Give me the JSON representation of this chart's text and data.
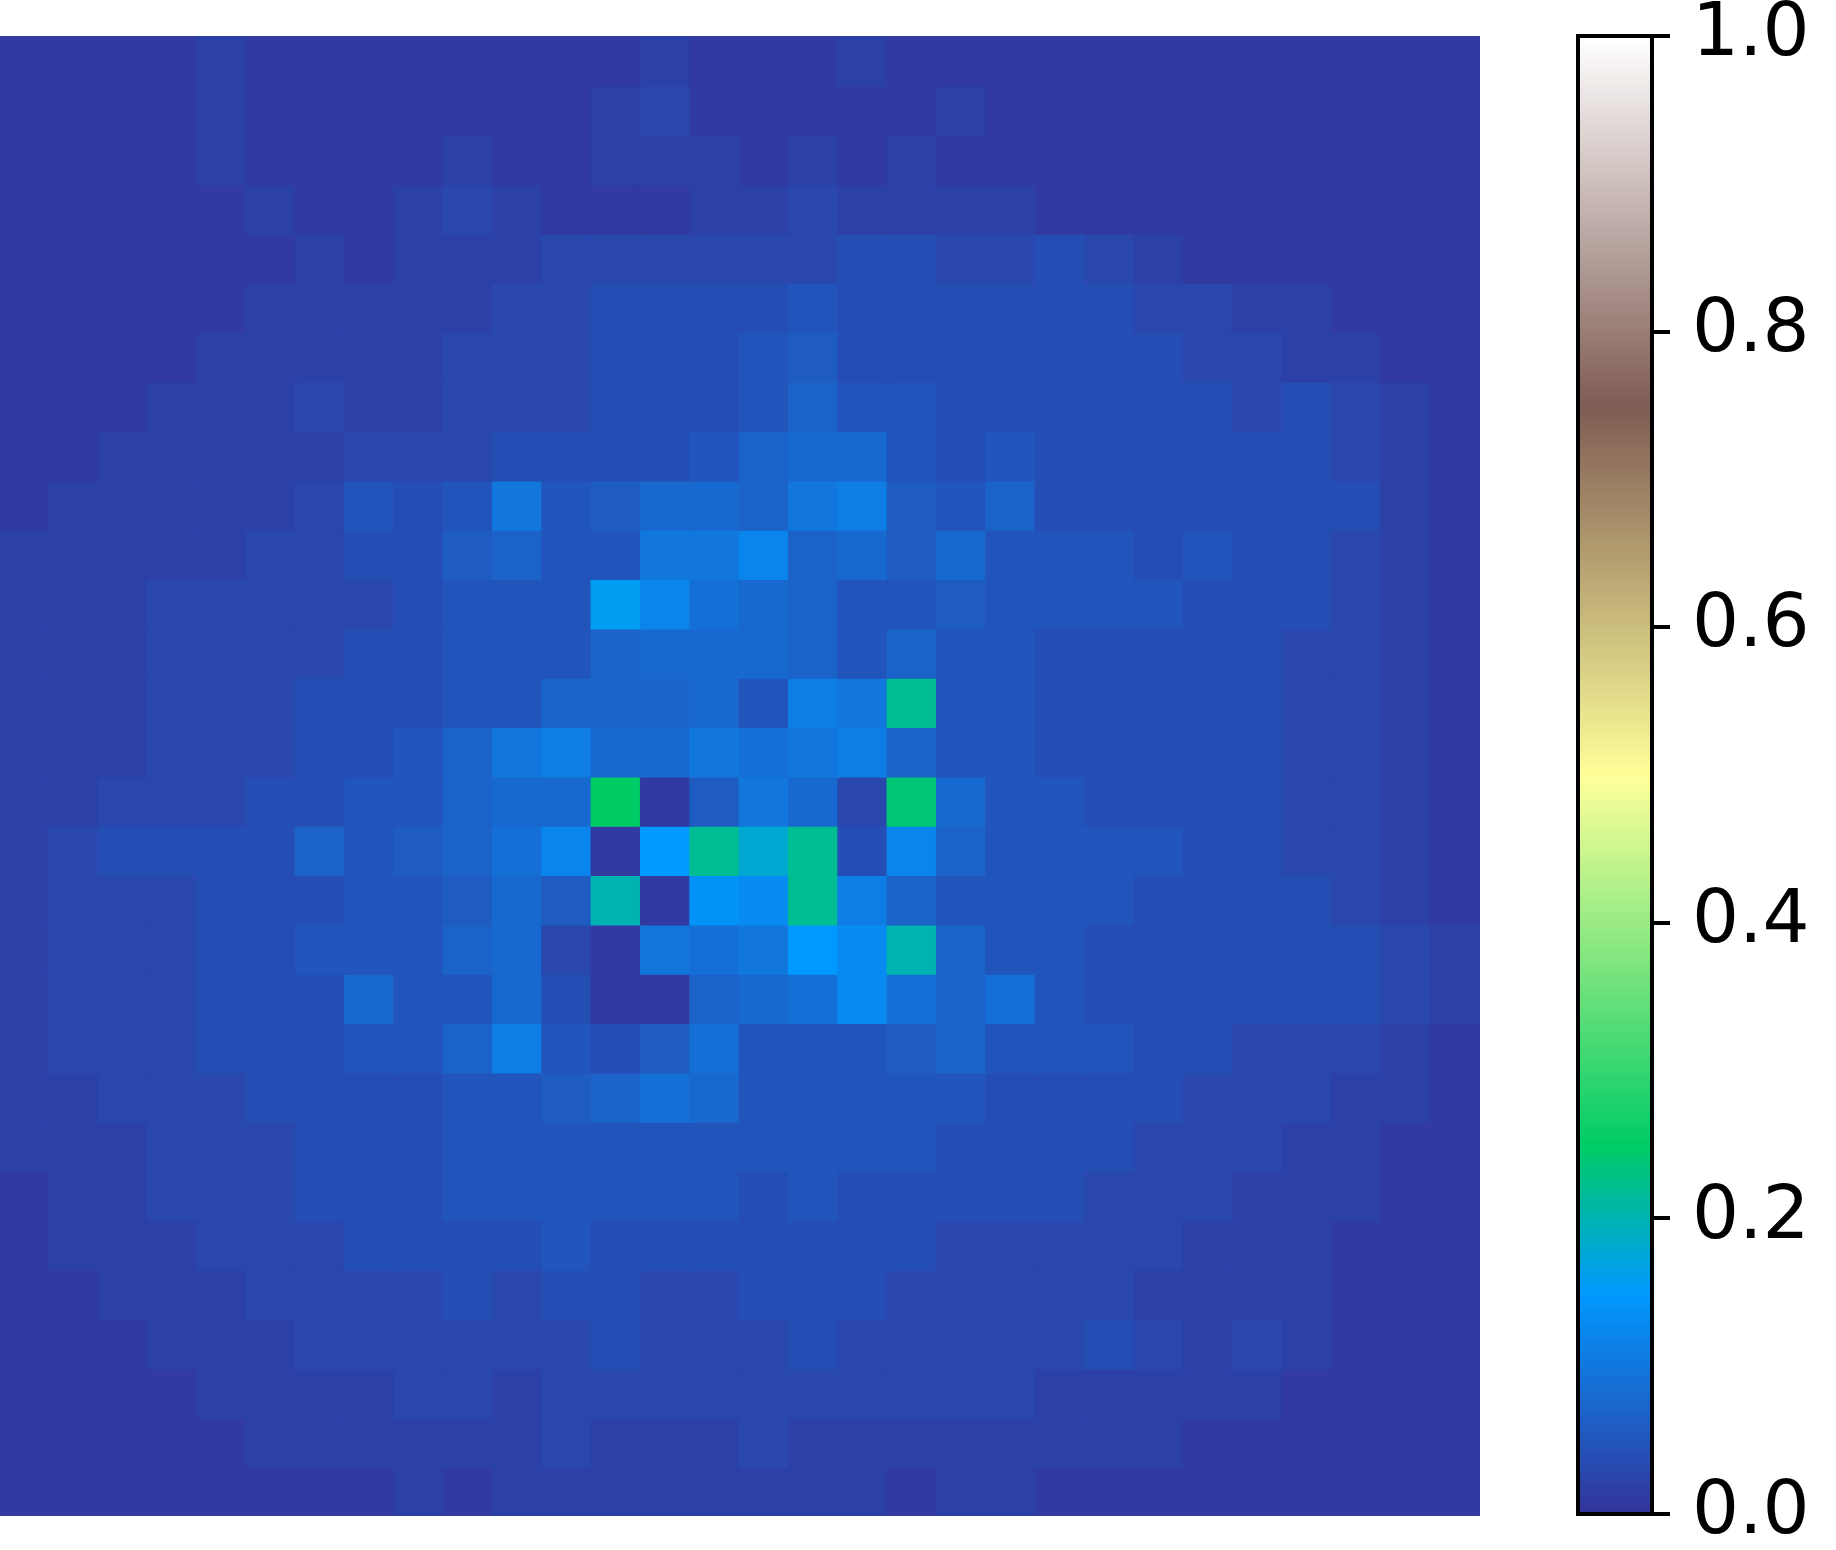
{
  "chart_data": {
    "type": "heatmap",
    "categories": [
      null,
      null,
      null,
      null,
      null,
      null,
      null,
      null,
      null,
      null,
      null,
      null,
      null,
      null,
      null,
      null,
      null,
      null,
      null,
      null,
      null,
      null,
      null,
      null,
      null,
      null,
      null,
      null,
      null,
      null
    ],
    "y_categories": [
      null,
      null,
      null,
      null,
      null,
      null,
      null,
      null,
      null,
      null,
      null,
      null,
      null,
      null,
      null,
      null,
      null,
      null,
      null,
      null,
      null,
      null,
      null,
      null,
      null,
      null,
      null,
      null,
      null,
      null
    ],
    "cells": [
      [
        0.01,
        0.01,
        0.01,
        0.01,
        0.02,
        0.01,
        0.01,
        0.01,
        0.01,
        0.01,
        0.01,
        0.01,
        0.01,
        0.02,
        0.01,
        0.01,
        0.01,
        0.02,
        0.01,
        0.01,
        0.01,
        0.01,
        0.01,
        0.01,
        0.01,
        0.01,
        0.01,
        0.01,
        0.01,
        0.01
      ],
      [
        0.01,
        0.01,
        0.01,
        0.01,
        0.02,
        0.01,
        0.01,
        0.01,
        0.01,
        0.01,
        0.01,
        0.01,
        0.02,
        0.03,
        0.01,
        0.01,
        0.01,
        0.01,
        0.01,
        0.02,
        0.01,
        0.01,
        0.01,
        0.01,
        0.01,
        0.01,
        0.01,
        0.01,
        0.01,
        0.01
      ],
      [
        0.01,
        0.01,
        0.01,
        0.01,
        0.02,
        0.01,
        0.01,
        0.01,
        0.01,
        0.02,
        0.01,
        0.01,
        0.02,
        0.02,
        0.02,
        0.01,
        0.02,
        0.01,
        0.02,
        0.01,
        0.01,
        0.01,
        0.01,
        0.01,
        0.01,
        0.01,
        0.01,
        0.01,
        0.01,
        0.01
      ],
      [
        0.01,
        0.01,
        0.01,
        0.01,
        0.01,
        0.02,
        0.01,
        0.01,
        0.02,
        0.03,
        0.02,
        0.01,
        0.01,
        0.01,
        0.02,
        0.02,
        0.03,
        0.02,
        0.02,
        0.02,
        0.02,
        0.01,
        0.01,
        0.01,
        0.01,
        0.01,
        0.01,
        0.01,
        0.01,
        0.01
      ],
      [
        0.01,
        0.01,
        0.01,
        0.01,
        0.01,
        0.01,
        0.02,
        0.01,
        0.02,
        0.02,
        0.02,
        0.03,
        0.03,
        0.03,
        0.03,
        0.03,
        0.03,
        0.04,
        0.04,
        0.03,
        0.03,
        0.04,
        0.03,
        0.02,
        0.01,
        0.01,
        0.01,
        0.01,
        0.01,
        0.01
      ],
      [
        0.01,
        0.01,
        0.01,
        0.01,
        0.01,
        0.02,
        0.02,
        0.02,
        0.02,
        0.02,
        0.03,
        0.03,
        0.04,
        0.04,
        0.04,
        0.04,
        0.05,
        0.04,
        0.04,
        0.04,
        0.04,
        0.04,
        0.04,
        0.03,
        0.03,
        0.02,
        0.02,
        0.01,
        0.01,
        0.01
      ],
      [
        0.01,
        0.01,
        0.01,
        0.01,
        0.02,
        0.02,
        0.02,
        0.02,
        0.02,
        0.03,
        0.03,
        0.03,
        0.04,
        0.04,
        0.04,
        0.05,
        0.06,
        0.04,
        0.04,
        0.04,
        0.04,
        0.04,
        0.04,
        0.04,
        0.03,
        0.03,
        0.02,
        0.02,
        0.01,
        0.01
      ],
      [
        0.01,
        0.01,
        0.01,
        0.02,
        0.02,
        0.02,
        0.03,
        0.02,
        0.02,
        0.03,
        0.03,
        0.03,
        0.04,
        0.04,
        0.04,
        0.05,
        0.07,
        0.05,
        0.05,
        0.04,
        0.04,
        0.04,
        0.04,
        0.04,
        0.04,
        0.03,
        0.04,
        0.03,
        0.02,
        0.01
      ],
      [
        0.01,
        0.01,
        0.02,
        0.02,
        0.02,
        0.02,
        0.02,
        0.03,
        0.03,
        0.03,
        0.04,
        0.04,
        0.04,
        0.04,
        0.05,
        0.07,
        0.08,
        0.08,
        0.05,
        0.04,
        0.05,
        0.04,
        0.04,
        0.04,
        0.04,
        0.04,
        0.04,
        0.03,
        0.02,
        0.01
      ],
      [
        0.01,
        0.02,
        0.02,
        0.02,
        0.02,
        0.02,
        0.03,
        0.05,
        0.04,
        0.05,
        0.1,
        0.05,
        0.06,
        0.08,
        0.08,
        0.07,
        0.1,
        0.11,
        0.06,
        0.05,
        0.07,
        0.04,
        0.04,
        0.04,
        0.04,
        0.04,
        0.04,
        0.04,
        0.02,
        0.01
      ],
      [
        0.02,
        0.02,
        0.02,
        0.02,
        0.02,
        0.03,
        0.03,
        0.04,
        0.04,
        0.06,
        0.07,
        0.05,
        0.05,
        0.1,
        0.1,
        0.12,
        0.07,
        0.08,
        0.06,
        0.08,
        0.05,
        0.05,
        0.05,
        0.04,
        0.05,
        0.04,
        0.04,
        0.03,
        0.02,
        0.01
      ],
      [
        0.02,
        0.02,
        0.02,
        0.03,
        0.03,
        0.03,
        0.03,
        0.03,
        0.04,
        0.05,
        0.05,
        0.05,
        0.16,
        0.12,
        0.09,
        0.08,
        0.07,
        0.05,
        0.05,
        0.06,
        0.05,
        0.05,
        0.05,
        0.05,
        0.04,
        0.04,
        0.04,
        0.03,
        0.02,
        0.01
      ],
      [
        0.02,
        0.02,
        0.02,
        0.03,
        0.03,
        0.03,
        0.03,
        0.04,
        0.04,
        0.05,
        0.05,
        0.05,
        0.07,
        0.08,
        0.08,
        0.08,
        0.07,
        0.05,
        0.07,
        0.05,
        0.05,
        0.04,
        0.04,
        0.04,
        0.04,
        0.04,
        0.03,
        0.03,
        0.02,
        0.01
      ],
      [
        0.02,
        0.02,
        0.02,
        0.03,
        0.03,
        0.03,
        0.04,
        0.04,
        0.04,
        0.05,
        0.05,
        0.07,
        0.07,
        0.07,
        0.08,
        0.05,
        0.11,
        0.1,
        0.22,
        0.05,
        0.05,
        0.04,
        0.04,
        0.04,
        0.04,
        0.04,
        0.03,
        0.03,
        0.02,
        0.01
      ],
      [
        0.02,
        0.02,
        0.02,
        0.03,
        0.03,
        0.03,
        0.04,
        0.04,
        0.05,
        0.07,
        0.1,
        0.11,
        0.08,
        0.08,
        0.1,
        0.09,
        0.1,
        0.11,
        0.07,
        0.05,
        0.05,
        0.04,
        0.04,
        0.04,
        0.04,
        0.04,
        0.03,
        0.03,
        0.02,
        0.01
      ],
      [
        0.02,
        0.02,
        0.03,
        0.03,
        0.03,
        0.04,
        0.04,
        0.05,
        0.05,
        0.07,
        0.08,
        0.08,
        0.25,
        0.01,
        0.06,
        0.1,
        0.08,
        0.03,
        0.24,
        0.08,
        0.05,
        0.05,
        0.04,
        0.04,
        0.04,
        0.04,
        0.03,
        0.03,
        0.02,
        0.01
      ],
      [
        0.02,
        0.03,
        0.04,
        0.04,
        0.04,
        0.04,
        0.07,
        0.05,
        0.06,
        0.07,
        0.09,
        0.12,
        0.01,
        0.15,
        0.22,
        0.18,
        0.22,
        0.04,
        0.12,
        0.07,
        0.05,
        0.05,
        0.05,
        0.05,
        0.04,
        0.04,
        0.03,
        0.03,
        0.02,
        0.01
      ],
      [
        0.02,
        0.03,
        0.03,
        0.03,
        0.04,
        0.04,
        0.04,
        0.05,
        0.05,
        0.06,
        0.08,
        0.06,
        0.2,
        0.01,
        0.14,
        0.13,
        0.22,
        0.11,
        0.07,
        0.05,
        0.05,
        0.05,
        0.05,
        0.04,
        0.04,
        0.04,
        0.04,
        0.03,
        0.02,
        0.01
      ],
      [
        0.02,
        0.03,
        0.03,
        0.03,
        0.04,
        0.04,
        0.05,
        0.05,
        0.05,
        0.07,
        0.08,
        0.03,
        0.01,
        0.1,
        0.09,
        0.1,
        0.15,
        0.13,
        0.2,
        0.07,
        0.05,
        0.05,
        0.04,
        0.04,
        0.04,
        0.04,
        0.04,
        0.04,
        0.03,
        0.02
      ],
      [
        0.02,
        0.03,
        0.03,
        0.03,
        0.04,
        0.04,
        0.04,
        0.08,
        0.05,
        0.05,
        0.08,
        0.04,
        0.01,
        0.01,
        0.07,
        0.08,
        0.09,
        0.13,
        0.09,
        0.07,
        0.09,
        0.05,
        0.04,
        0.04,
        0.04,
        0.04,
        0.04,
        0.04,
        0.03,
        0.02
      ],
      [
        0.02,
        0.03,
        0.03,
        0.03,
        0.04,
        0.04,
        0.04,
        0.05,
        0.05,
        0.07,
        0.11,
        0.05,
        0.04,
        0.06,
        0.09,
        0.05,
        0.05,
        0.05,
        0.06,
        0.07,
        0.05,
        0.05,
        0.05,
        0.04,
        0.04,
        0.03,
        0.03,
        0.03,
        0.02,
        0.01
      ],
      [
        0.02,
        0.02,
        0.03,
        0.03,
        0.03,
        0.04,
        0.04,
        0.04,
        0.04,
        0.05,
        0.05,
        0.06,
        0.07,
        0.09,
        0.08,
        0.05,
        0.05,
        0.05,
        0.05,
        0.05,
        0.04,
        0.04,
        0.04,
        0.04,
        0.03,
        0.03,
        0.03,
        0.02,
        0.02,
        0.01
      ],
      [
        0.02,
        0.02,
        0.02,
        0.03,
        0.03,
        0.03,
        0.04,
        0.04,
        0.04,
        0.05,
        0.05,
        0.05,
        0.05,
        0.05,
        0.05,
        0.05,
        0.05,
        0.05,
        0.05,
        0.04,
        0.04,
        0.04,
        0.04,
        0.03,
        0.03,
        0.03,
        0.02,
        0.02,
        0.01,
        0.01
      ],
      [
        0.01,
        0.02,
        0.02,
        0.03,
        0.03,
        0.03,
        0.04,
        0.04,
        0.04,
        0.05,
        0.05,
        0.05,
        0.05,
        0.05,
        0.05,
        0.04,
        0.05,
        0.04,
        0.04,
        0.04,
        0.04,
        0.04,
        0.03,
        0.03,
        0.03,
        0.02,
        0.02,
        0.02,
        0.01,
        0.01
      ],
      [
        0.01,
        0.02,
        0.02,
        0.02,
        0.03,
        0.03,
        0.03,
        0.04,
        0.04,
        0.04,
        0.04,
        0.05,
        0.04,
        0.04,
        0.04,
        0.04,
        0.04,
        0.04,
        0.04,
        0.03,
        0.03,
        0.03,
        0.03,
        0.03,
        0.02,
        0.02,
        0.02,
        0.01,
        0.01,
        0.01
      ],
      [
        0.01,
        0.01,
        0.02,
        0.02,
        0.02,
        0.03,
        0.03,
        0.03,
        0.03,
        0.04,
        0.03,
        0.04,
        0.04,
        0.03,
        0.03,
        0.04,
        0.04,
        0.04,
        0.03,
        0.03,
        0.03,
        0.03,
        0.03,
        0.02,
        0.02,
        0.02,
        0.02,
        0.01,
        0.01,
        0.01
      ],
      [
        0.01,
        0.01,
        0.01,
        0.02,
        0.02,
        0.02,
        0.03,
        0.03,
        0.03,
        0.03,
        0.03,
        0.03,
        0.04,
        0.03,
        0.03,
        0.03,
        0.04,
        0.03,
        0.03,
        0.03,
        0.03,
        0.03,
        0.04,
        0.03,
        0.02,
        0.03,
        0.02,
        0.01,
        0.01,
        0.01
      ],
      [
        0.01,
        0.01,
        0.01,
        0.01,
        0.02,
        0.02,
        0.02,
        0.02,
        0.03,
        0.03,
        0.02,
        0.03,
        0.03,
        0.03,
        0.03,
        0.03,
        0.03,
        0.03,
        0.03,
        0.03,
        0.03,
        0.02,
        0.02,
        0.02,
        0.02,
        0.02,
        0.01,
        0.01,
        0.01,
        0.01
      ],
      [
        0.01,
        0.01,
        0.01,
        0.01,
        0.01,
        0.02,
        0.02,
        0.02,
        0.02,
        0.02,
        0.02,
        0.03,
        0.02,
        0.02,
        0.02,
        0.03,
        0.02,
        0.02,
        0.02,
        0.02,
        0.02,
        0.02,
        0.02,
        0.02,
        0.01,
        0.01,
        0.01,
        0.01,
        0.01,
        0.01
      ],
      [
        0.01,
        0.01,
        0.01,
        0.01,
        0.01,
        0.01,
        0.01,
        0.01,
        0.02,
        0.01,
        0.02,
        0.02,
        0.02,
        0.02,
        0.02,
        0.02,
        0.02,
        0.02,
        0.01,
        0.02,
        0.02,
        0.01,
        0.01,
        0.01,
        0.01,
        0.01,
        0.01,
        0.01,
        0.01,
        0.01
      ]
    ],
    "clim": [
      0,
      1
    ],
    "cticks": [
      {
        "value": 0,
        "label": "0.0"
      },
      0.2,
      0.4,
      0.6,
      0.8,
      {
        "value": 1,
        "label": "1.0"
      }
    ],
    "tick_labels": false
  }
}
